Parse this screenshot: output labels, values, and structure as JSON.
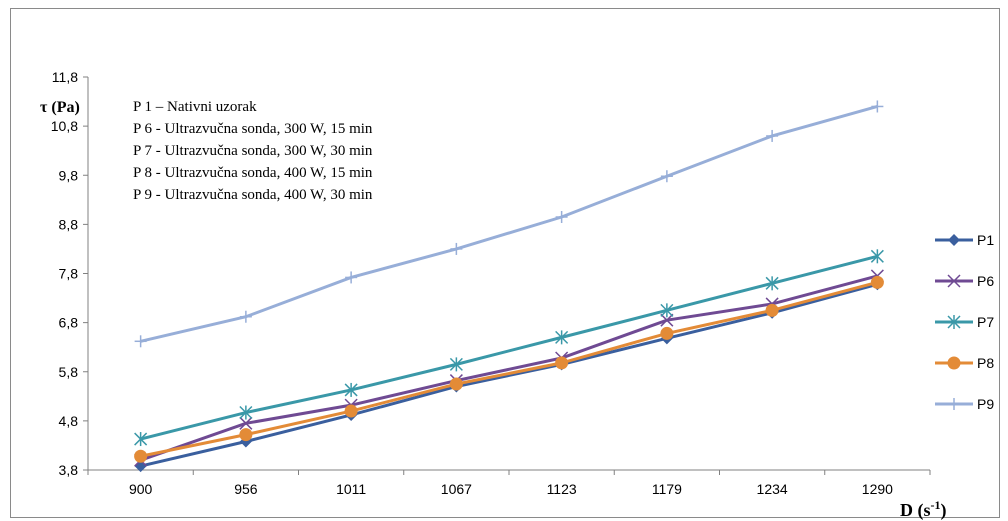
{
  "chart_data": {
    "type": "line",
    "xlabel": "D (s",
    "xlabel_sup": "-1",
    "xlabel_close": ")",
    "ylabel": "τ (Pa)",
    "categories": [
      "900",
      "956",
      "1011",
      "1067",
      "1123",
      "1179",
      "1234",
      "1290"
    ],
    "y_ticks": [
      "3,8",
      "4,8",
      "5,8",
      "6,8",
      "7,8",
      "8,8",
      "9,8",
      "10,8",
      "11,8"
    ],
    "ylim": [
      3.8,
      11.8
    ],
    "grid": false,
    "legend_position": "right",
    "annotations": [
      "P 1 – Nativni uzorak",
      "P 6 - Ultrazvučna sonda,  300 W, 15 min",
      "P 7 - Ultrazvučna sonda,  300 W, 30 min",
      "P 8 - Ultrazvučna sonda,  400 W, 15 min",
      "P 9 - Ultrazvučna sonda,  400 W, 30 min"
    ],
    "series": [
      {
        "name": "P1",
        "color": "#3a5f9e",
        "marker": "diamond",
        "values": [
          3.88,
          4.38,
          4.92,
          5.5,
          5.95,
          6.48,
          7.0,
          7.58
        ]
      },
      {
        "name": "P6",
        "color": "#6f4a93",
        "marker": "x",
        "values": [
          4.0,
          4.75,
          5.12,
          5.62,
          6.08,
          6.85,
          7.18,
          7.75
        ]
      },
      {
        "name": "P7",
        "color": "#3a98a8",
        "marker": "star",
        "values": [
          4.43,
          4.97,
          5.43,
          5.95,
          6.5,
          7.05,
          7.6,
          8.15
        ]
      },
      {
        "name": "P8",
        "color": "#e38b37",
        "marker": "circle",
        "values": [
          4.08,
          4.52,
          5.0,
          5.55,
          5.98,
          6.58,
          7.05,
          7.62
        ]
      },
      {
        "name": "P9",
        "color": "#97aed8",
        "marker": "plus",
        "values": [
          6.42,
          6.92,
          7.72,
          8.3,
          8.95,
          9.78,
          10.6,
          11.2
        ]
      }
    ]
  }
}
